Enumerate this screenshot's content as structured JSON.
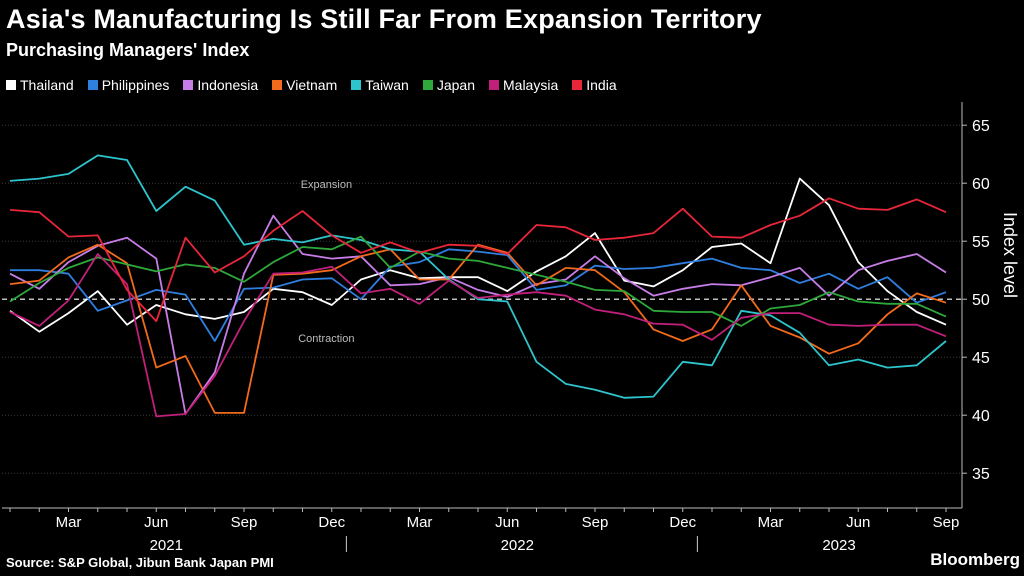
{
  "title": "Asia's Manufacturing Is Still Far From Expansion Territory",
  "subtitle": "Purchasing Managers' Index",
  "source": "Source: S&P Global, Jibun Bank Japan PMI",
  "brand": "Bloomberg",
  "chart_data": {
    "type": "line",
    "ylabel": "Index level",
    "ylim": [
      32,
      67
    ],
    "yticks": [
      35,
      40,
      45,
      50,
      55,
      60,
      65
    ],
    "reference_line": 50,
    "annotations": [
      "Expansion",
      "Contraction"
    ],
    "x": [
      "2021-01",
      "2021-02",
      "2021-03",
      "2021-04",
      "2021-05",
      "2021-06",
      "2021-07",
      "2021-08",
      "2021-09",
      "2021-10",
      "2021-11",
      "2021-12",
      "2022-01",
      "2022-02",
      "2022-03",
      "2022-04",
      "2022-05",
      "2022-06",
      "2022-07",
      "2022-08",
      "2022-09",
      "2022-10",
      "2022-11",
      "2022-12",
      "2023-01",
      "2023-02",
      "2023-03",
      "2023-04",
      "2023-05",
      "2023-06",
      "2023-07",
      "2023-08",
      "2023-09"
    ],
    "month_labels": [
      {
        "x": "2021-03",
        "label": "Mar"
      },
      {
        "x": "2021-06",
        "label": "Jun"
      },
      {
        "x": "2021-09",
        "label": "Sep"
      },
      {
        "x": "2021-12",
        "label": "Dec"
      },
      {
        "x": "2022-03",
        "label": "Mar"
      },
      {
        "x": "2022-06",
        "label": "Jun"
      },
      {
        "x": "2022-09",
        "label": "Sep"
      },
      {
        "x": "2022-12",
        "label": "Dec"
      },
      {
        "x": "2023-03",
        "label": "Mar"
      },
      {
        "x": "2023-06",
        "label": "Jun"
      },
      {
        "x": "2023-09",
        "label": "Sep"
      }
    ],
    "year_labels": [
      {
        "label": "2021",
        "center": "2021-06"
      },
      {
        "label": "2022",
        "center": "2022-06"
      },
      {
        "label": "2023",
        "center": "2023-05"
      }
    ],
    "year_separators": [
      "2022-01",
      "2023-01"
    ],
    "series": [
      {
        "name": "Thailand",
        "color": "#ffffff",
        "values": [
          49.0,
          47.2,
          48.8,
          50.7,
          47.8,
          49.5,
          48.7,
          48.3,
          48.9,
          50.9,
          50.6,
          49.5,
          51.7,
          52.5,
          51.8,
          51.9,
          51.9,
          50.7,
          52.4,
          53.7,
          55.7,
          51.6,
          51.1,
          52.5,
          54.5,
          54.8,
          53.1,
          60.4,
          58.1,
          53.2,
          50.7,
          48.9,
          47.8
        ]
      },
      {
        "name": "Philippines",
        "color": "#2e7fe0",
        "values": [
          52.5,
          52.5,
          52.2,
          49.0,
          49.9,
          50.8,
          50.4,
          46.4,
          50.9,
          51.0,
          51.7,
          51.8,
          50.0,
          52.8,
          53.2,
          54.3,
          54.1,
          53.8,
          50.8,
          51.2,
          52.9,
          52.6,
          52.7,
          53.1,
          53.5,
          52.7,
          52.5,
          51.4,
          52.2,
          50.9,
          51.9,
          49.7,
          50.6
        ]
      },
      {
        "name": "Indonesia",
        "color": "#c77de8",
        "values": [
          52.2,
          50.9,
          53.2,
          54.6,
          55.3,
          53.5,
          40.1,
          43.7,
          52.2,
          57.2,
          53.9,
          53.5,
          53.7,
          51.2,
          51.3,
          51.9,
          50.8,
          50.2,
          51.3,
          51.7,
          53.7,
          51.8,
          50.3,
          50.9,
          51.3,
          51.2,
          51.9,
          52.7,
          50.3,
          52.5,
          53.3,
          53.9,
          52.3
        ]
      },
      {
        "name": "Vietnam",
        "color": "#f26a1b",
        "values": [
          51.3,
          51.6,
          53.6,
          54.7,
          53.1,
          44.1,
          45.1,
          40.2,
          40.2,
          52.1,
          52.2,
          52.5,
          53.7,
          54.3,
          51.7,
          51.7,
          54.7,
          54.0,
          51.2,
          52.7,
          52.5,
          50.6,
          47.4,
          46.4,
          47.4,
          51.2,
          47.7,
          46.7,
          45.3,
          46.2,
          48.7,
          50.5,
          49.7
        ]
      },
      {
        "name": "Taiwan",
        "color": "#2ec4cc",
        "values": [
          60.2,
          60.4,
          60.8,
          62.4,
          62.0,
          57.6,
          59.7,
          58.5,
          54.7,
          55.2,
          54.9,
          55.5,
          55.1,
          54.3,
          54.1,
          51.7,
          50.0,
          49.8,
          44.6,
          42.7,
          42.2,
          41.5,
          41.6,
          44.6,
          44.3,
          49.0,
          48.6,
          47.1,
          44.3,
          44.8,
          44.1,
          44.3,
          46.4
        ]
      },
      {
        "name": "Japan",
        "color": "#2ea83a",
        "values": [
          49.8,
          51.4,
          52.7,
          53.6,
          53.0,
          52.4,
          53.0,
          52.7,
          51.5,
          53.2,
          54.5,
          54.3,
          55.4,
          52.7,
          54.1,
          53.5,
          53.3,
          52.7,
          52.1,
          51.5,
          50.8,
          50.7,
          49.0,
          48.9,
          48.9,
          47.7,
          49.2,
          49.5,
          50.6,
          49.8,
          49.6,
          49.6,
          48.5
        ]
      },
      {
        "name": "Malaysia",
        "color": "#c0207a",
        "values": [
          48.9,
          47.7,
          49.9,
          53.9,
          51.3,
          39.9,
          40.1,
          43.4,
          48.1,
          52.2,
          52.3,
          52.8,
          50.5,
          50.9,
          49.6,
          51.6,
          50.1,
          50.4,
          50.6,
          50.3,
          49.1,
          48.7,
          47.9,
          47.8,
          46.5,
          48.4,
          48.8,
          48.8,
          47.8,
          47.7,
          47.8,
          47.8,
          46.8
        ]
      },
      {
        "name": "India",
        "color": "#e8263a",
        "values": [
          57.7,
          57.5,
          55.4,
          55.5,
          50.8,
          48.1,
          55.3,
          52.3,
          53.7,
          55.9,
          57.6,
          55.5,
          54.0,
          54.9,
          54.0,
          54.7,
          54.6,
          53.9,
          56.4,
          56.2,
          55.1,
          55.3,
          55.7,
          57.8,
          55.4,
          55.3,
          56.4,
          57.2,
          58.7,
          57.8,
          57.7,
          58.6,
          57.5
        ]
      }
    ]
  }
}
